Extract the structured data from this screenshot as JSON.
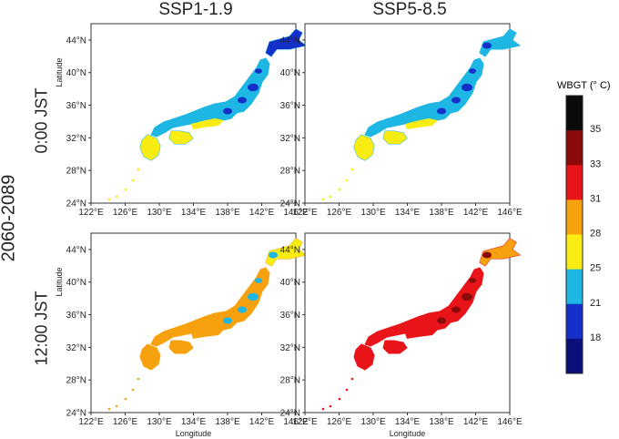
{
  "figure": {
    "columns": [
      "SSP1-1.9",
      "SSP5-8.5"
    ],
    "period": "2060-2089",
    "rows": [
      "0:00 JST",
      "12:00 JST"
    ],
    "axes": {
      "xlabel": "Longitude",
      "ylabel": "Latitude",
      "xticks": [
        "122°E",
        "126°E",
        "130°E",
        "134°E",
        "138°E",
        "142°E",
        "146°E"
      ],
      "yticks": [
        "24°N",
        "28°N",
        "32°N",
        "36°N",
        "40°N",
        "44°N"
      ],
      "xlim": [
        122,
        146
      ],
      "ylim": [
        24,
        46
      ]
    },
    "colorbar": {
      "title": "WBGT (° C)",
      "labels": [
        "35",
        "33",
        "31",
        "28",
        "25",
        "21",
        "18"
      ],
      "colors": [
        "#0b0b0b",
        "#8b0a0a",
        "#e8141a",
        "#f7a10e",
        "#f8ec12",
        "#1eb6e2",
        "#1530c8",
        "#0a0f7a"
      ]
    },
    "panels": [
      {
        "id": "ssp119-00",
        "scenario": "SSP1-1.9",
        "time": "0:00 JST",
        "north": "#1530c8",
        "main": "#1eb6e2",
        "south": "#f8ec12",
        "spots": "#1530c8"
      },
      {
        "id": "ssp585-00",
        "scenario": "SSP5-8.5",
        "time": "0:00 JST",
        "north": "#1eb6e2",
        "main": "#1eb6e2",
        "south": "#f8ec12",
        "spots": "#1530c8"
      },
      {
        "id": "ssp119-12",
        "scenario": "SSP1-1.9",
        "time": "12:00 JST",
        "north": "#f8ec12",
        "main": "#f7a10e",
        "south": "#f7a10e",
        "spots": "#1eb6e2"
      },
      {
        "id": "ssp585-12",
        "scenario": "SSP5-8.5",
        "time": "12:00 JST",
        "north": "#f7a10e",
        "main": "#e8141a",
        "south": "#e8141a",
        "spots": "#8b0a0a"
      }
    ]
  }
}
